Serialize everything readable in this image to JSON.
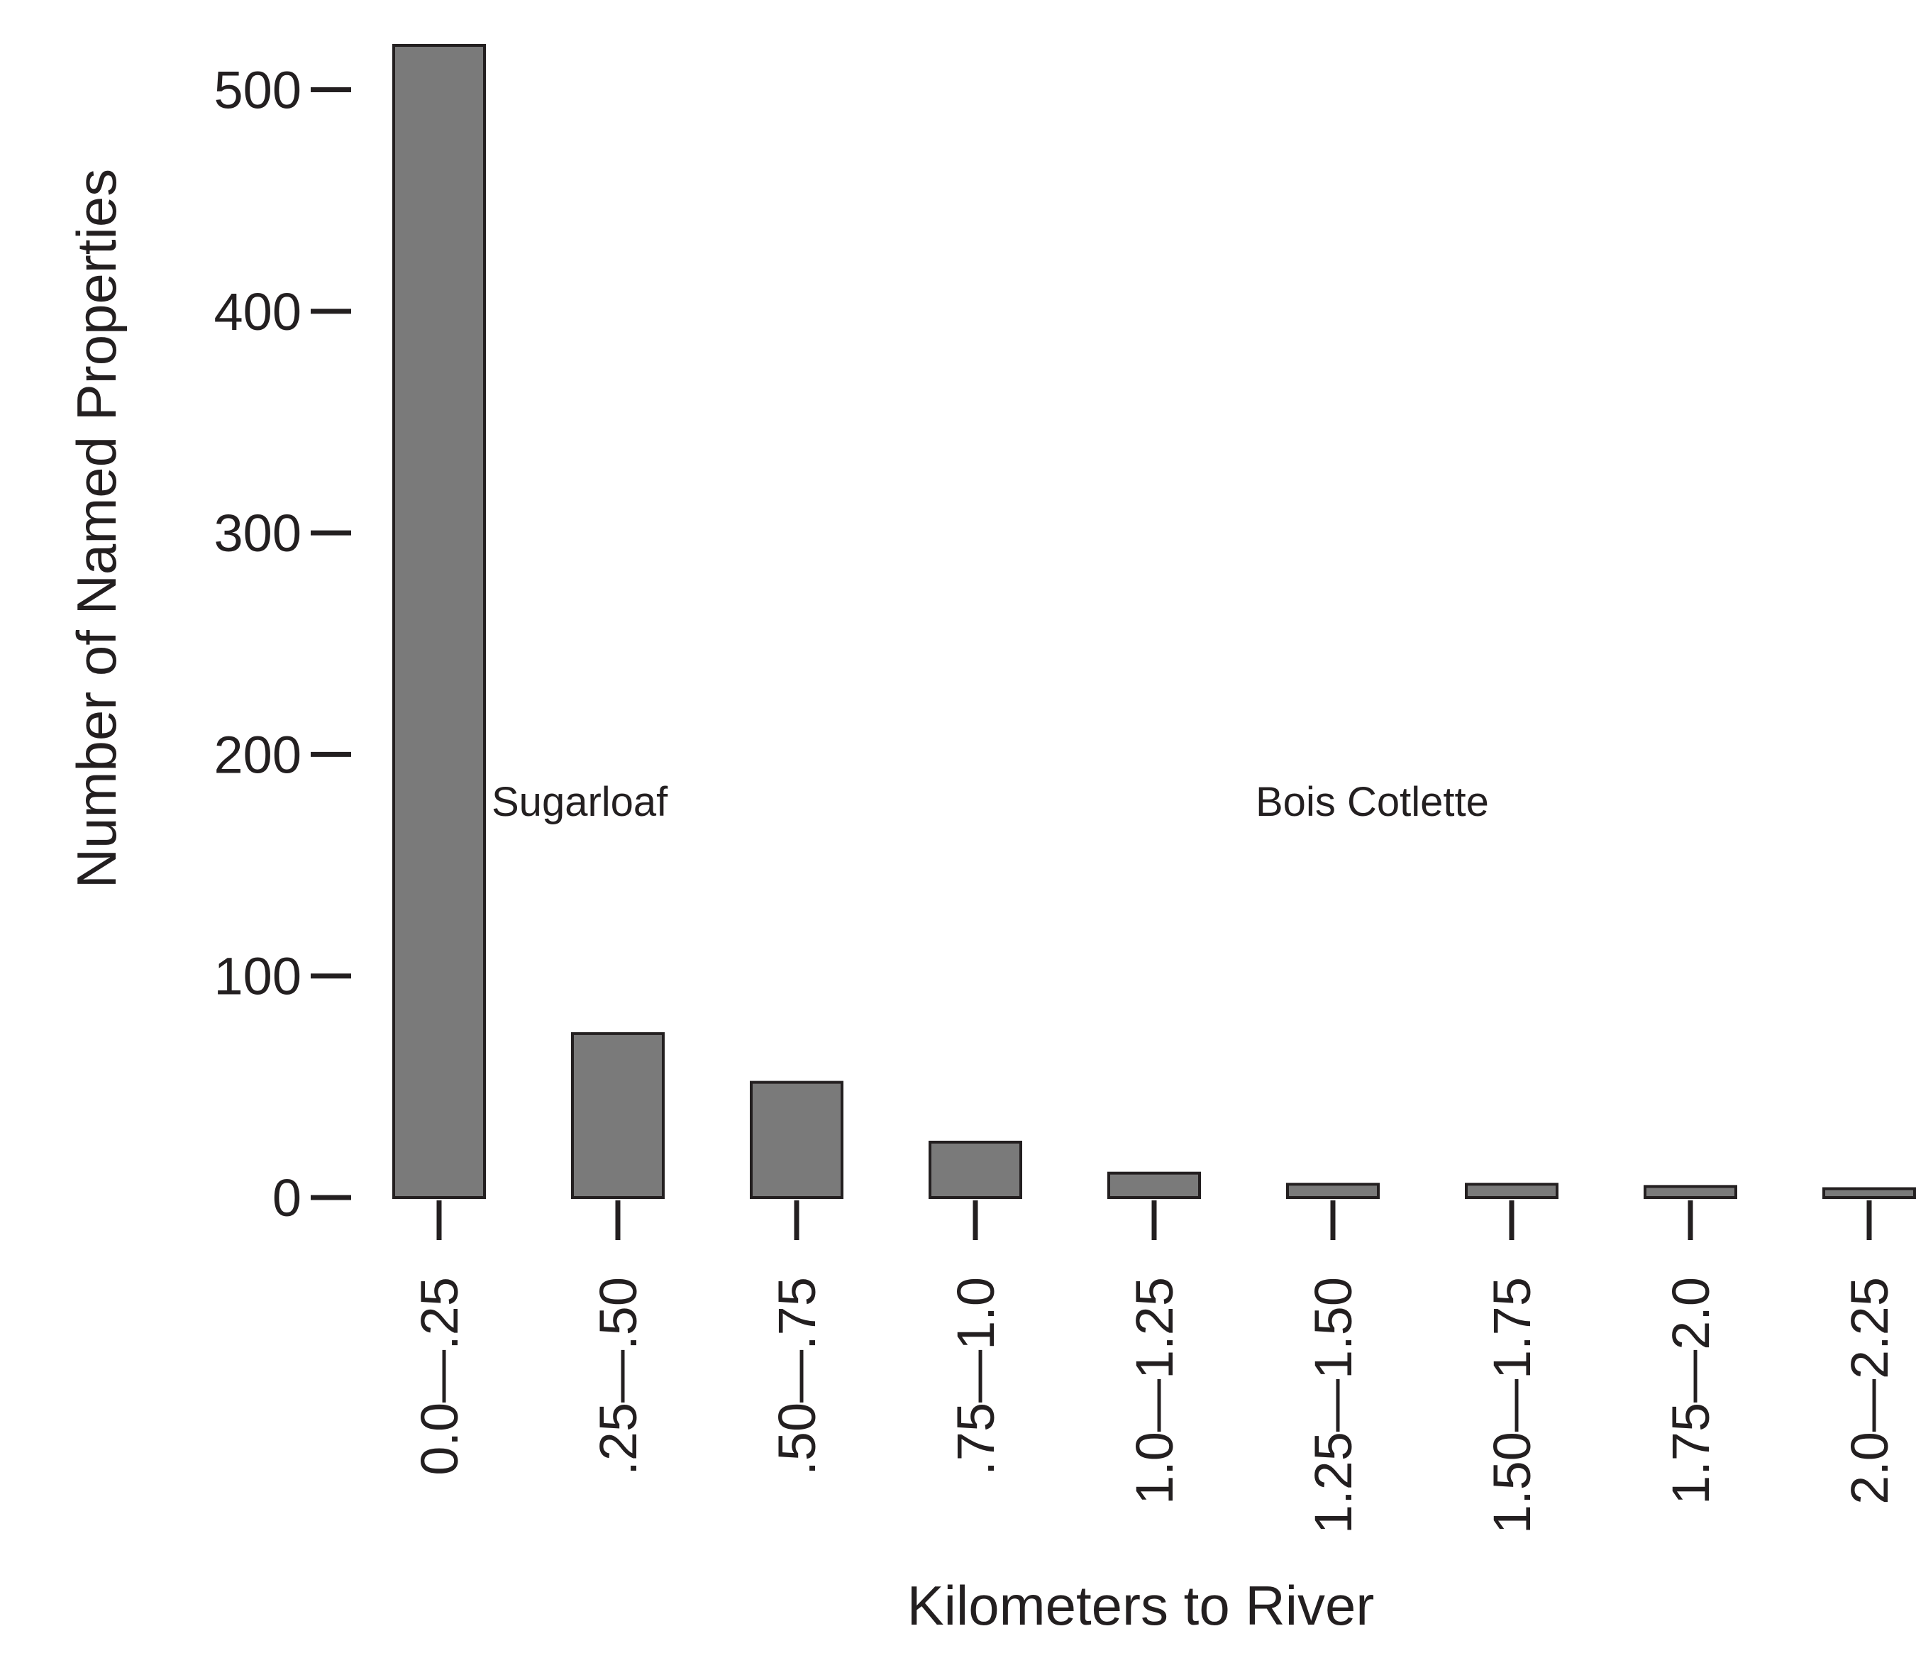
{
  "chart_data": {
    "type": "bar",
    "title": "",
    "xlabel": "Kilometers to River",
    "ylabel": "Number of Named Properties",
    "categories": [
      "0.0—.25",
      ".25—.50",
      ".50—.75",
      ".75—1.0",
      "1.0—1.25",
      "1.25—1.50",
      "1.50—1.75",
      "1.75—2.0",
      "2.0—2.25"
    ],
    "values": [
      520,
      74,
      52,
      25,
      11,
      6,
      6,
      5,
      4
    ],
    "yticks": [
      0,
      100,
      200,
      300,
      400,
      500
    ],
    "ylim": [
      0,
      520
    ],
    "grid": false,
    "legend": "none",
    "bar_color": "#7a7a7a",
    "edge_color": "#231f20",
    "annotations": [
      {
        "text": "Sugarloaf"
      },
      {
        "text": "Bois Cotlette"
      }
    ]
  }
}
